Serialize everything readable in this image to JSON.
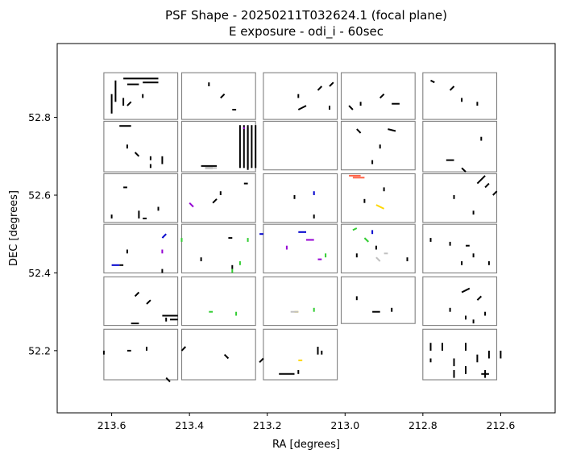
{
  "chart_data": {
    "type": "scatter",
    "title_line1": "PSF Shape - 20250211T032624.1 (focal plane)",
    "title_line2": "E exposure - odi_i - 60sec",
    "xlabel": "RA [degrees]",
    "ylabel": "DEC [degrees]",
    "xlim": [
      213.74,
      212.46
    ],
    "ylim": [
      52.04,
      52.99
    ],
    "x_inverted": true,
    "grid": false,
    "legend": "none",
    "xticks": [
      {
        "value": 213.6,
        "label": "213.6"
      },
      {
        "value": 213.4,
        "label": "213.4"
      },
      {
        "value": 213.2,
        "label": "213.2"
      },
      {
        "value": 213.0,
        "label": "213.0"
      },
      {
        "value": 212.8,
        "label": "212.8"
      },
      {
        "value": 212.6,
        "label": "212.6"
      }
    ],
    "yticks": [
      {
        "value": 52.2,
        "label": "52.2"
      },
      {
        "value": 52.4,
        "label": "52.4"
      },
      {
        "value": 52.6,
        "label": "52.6"
      },
      {
        "value": 52.8,
        "label": "52.8"
      }
    ],
    "ota_outline_color": "#808080",
    "ota_columns_ra": [
      [
        213.62,
        213.43
      ],
      [
        213.42,
        213.23
      ],
      [
        213.21,
        213.02
      ],
      [
        213.01,
        212.82
      ],
      [
        212.8,
        212.61
      ]
    ],
    "ota_rows_dec": [
      [
        52.795,
        52.915
      ],
      [
        52.66,
        52.79
      ],
      [
        52.53,
        52.655
      ],
      [
        52.4,
        52.525
      ],
      [
        52.265,
        52.39
      ],
      [
        52.125,
        52.255
      ]
    ],
    "ota_rows_dec_by_column": [
      [
        [
          52.795,
          52.915
        ],
        [
          52.66,
          52.79
        ],
        [
          52.53,
          52.655
        ],
        [
          52.4,
          52.525
        ],
        [
          52.265,
          52.39
        ],
        [
          52.125,
          52.255
        ]
      ],
      [
        [
          52.795,
          52.915
        ],
        [
          52.66,
          52.79
        ],
        [
          52.53,
          52.655
        ],
        [
          52.4,
          52.525
        ],
        [
          52.265,
          52.39
        ],
        [
          52.125,
          52.255
        ]
      ],
      [
        [
          52.795,
          52.915
        ],
        [
          52.665,
          52.79
        ],
        [
          52.53,
          52.655
        ],
        [
          52.4,
          52.525
        ],
        [
          52.265,
          52.39
        ],
        [
          52.125,
          52.255
        ]
      ],
      [
        [
          52.795,
          52.915
        ],
        [
          52.665,
          52.79
        ],
        [
          52.53,
          52.655
        ],
        [
          52.4,
          52.525
        ],
        [
          52.27,
          52.39
        ],
        null
      ],
      [
        [
          52.795,
          52.915
        ],
        [
          52.66,
          52.79
        ],
        [
          52.53,
          52.655
        ],
        [
          52.4,
          52.525
        ],
        [
          52.265,
          52.39
        ],
        [
          52.125,
          52.255
        ]
      ]
    ],
    "series": [
      {
        "color": "#000000",
        "segments": [
          [
            213.59,
            52.895,
            213.59,
            52.84
          ],
          [
            213.57,
            52.9,
            213.48,
            52.9
          ],
          [
            213.52,
            52.89,
            213.48,
            52.89
          ],
          [
            213.56,
            52.885,
            213.53,
            52.885
          ],
          [
            213.6,
            52.86,
            213.6,
            52.81
          ],
          [
            213.57,
            52.85,
            213.57,
            52.83
          ],
          [
            213.55,
            52.84,
            213.56,
            52.83
          ],
          [
            213.52,
            52.86,
            213.52,
            52.85
          ],
          [
            213.32,
            52.85,
            213.31,
            52.86
          ],
          [
            213.29,
            52.82,
            213.28,
            52.82
          ],
          [
            213.35,
            52.89,
            213.35,
            52.88
          ],
          [
            213.12,
            52.82,
            213.1,
            52.83
          ],
          [
            213.07,
            52.87,
            213.06,
            52.88
          ],
          [
            213.04,
            52.88,
            213.03,
            52.89
          ],
          [
            213.04,
            52.82,
            213.04,
            52.83
          ],
          [
            213.12,
            52.86,
            213.12,
            52.85
          ],
          [
            212.88,
            52.835,
            212.86,
            52.835
          ],
          [
            212.91,
            52.85,
            212.9,
            52.86
          ],
          [
            212.96,
            52.84,
            212.96,
            52.83
          ],
          [
            212.99,
            52.83,
            212.98,
            52.82
          ],
          [
            212.77,
            52.89,
            212.78,
            52.895
          ],
          [
            212.73,
            52.87,
            212.72,
            52.88
          ],
          [
            212.7,
            52.84,
            212.7,
            52.85
          ],
          [
            212.66,
            52.84,
            212.66,
            52.83
          ],
          [
            213.58,
            52.778,
            213.55,
            52.778
          ],
          [
            213.56,
            52.73,
            213.56,
            52.72
          ],
          [
            213.54,
            52.71,
            213.53,
            52.7
          ],
          [
            213.5,
            52.7,
            213.5,
            52.69
          ],
          [
            213.47,
            52.7,
            213.47,
            52.68
          ],
          [
            213.5,
            52.68,
            213.5,
            52.67
          ],
          [
            213.26,
            52.78,
            213.26,
            52.67
          ],
          [
            213.25,
            52.78,
            213.25,
            52.67
          ],
          [
            213.24,
            52.78,
            213.24,
            52.67
          ],
          [
            213.23,
            52.78,
            213.23,
            52.67
          ],
          [
            213.27,
            52.78,
            213.27,
            52.67
          ],
          [
            213.25,
            52.775,
            213.25,
            52.665
          ],
          [
            213.37,
            52.675,
            213.33,
            52.675
          ],
          [
            213.36,
            52.67,
            213.34,
            52.67
          ],
          [
            212.97,
            52.77,
            212.96,
            52.76
          ],
          [
            212.91,
            52.73,
            212.91,
            52.72
          ],
          [
            212.89,
            52.77,
            212.87,
            52.765
          ],
          [
            212.93,
            52.69,
            212.93,
            52.68
          ],
          [
            212.74,
            52.69,
            212.72,
            52.69
          ],
          [
            212.7,
            52.67,
            212.69,
            52.66
          ],
          [
            212.65,
            52.75,
            212.65,
            52.74
          ],
          [
            213.6,
            52.55,
            213.6,
            52.54
          ],
          [
            213.57,
            52.62,
            213.56,
            52.62
          ],
          [
            213.53,
            52.56,
            213.53,
            52.54
          ],
          [
            213.52,
            52.54,
            213.51,
            52.54
          ],
          [
            213.48,
            52.57,
            213.48,
            52.56
          ],
          [
            213.34,
            52.58,
            213.33,
            52.59
          ],
          [
            213.32,
            52.61,
            213.32,
            52.6
          ],
          [
            213.26,
            52.63,
            213.25,
            52.63
          ],
          [
            213.13,
            52.6,
            213.13,
            52.59
          ],
          [
            213.08,
            52.55,
            213.08,
            52.54
          ],
          [
            212.95,
            52.59,
            212.95,
            52.58
          ],
          [
            212.9,
            52.62,
            212.9,
            52.61
          ],
          [
            212.72,
            52.6,
            212.72,
            52.59
          ],
          [
            212.66,
            52.63,
            212.64,
            52.65
          ],
          [
            212.64,
            52.62,
            212.63,
            52.63
          ],
          [
            212.62,
            52.6,
            212.61,
            52.61
          ],
          [
            212.67,
            52.56,
            212.67,
            52.55
          ],
          [
            213.58,
            52.42,
            213.57,
            52.42
          ],
          [
            213.56,
            52.46,
            213.56,
            52.45
          ],
          [
            213.47,
            52.41,
            213.47,
            52.4
          ],
          [
            213.3,
            52.49,
            213.29,
            52.49
          ],
          [
            213.29,
            52.42,
            213.29,
            52.41
          ],
          [
            213.37,
            52.44,
            213.37,
            52.43
          ],
          [
            212.97,
            52.45,
            212.97,
            52.44
          ],
          [
            212.92,
            52.47,
            212.92,
            52.46
          ],
          [
            212.84,
            52.44,
            212.84,
            52.43
          ],
          [
            212.73,
            52.48,
            212.73,
            52.47
          ],
          [
            212.69,
            52.47,
            212.68,
            52.47
          ],
          [
            212.67,
            52.45,
            212.67,
            52.44
          ],
          [
            212.7,
            52.43,
            212.7,
            52.42
          ],
          [
            212.63,
            52.43,
            212.63,
            52.42
          ],
          [
            212.78,
            52.49,
            212.78,
            52.48
          ],
          [
            213.54,
            52.34,
            213.53,
            52.35
          ],
          [
            213.47,
            52.29,
            213.43,
            52.29
          ],
          [
            213.45,
            52.28,
            213.43,
            52.28
          ],
          [
            213.46,
            52.275,
            213.46,
            52.285
          ],
          [
            213.55,
            52.27,
            213.53,
            52.27
          ],
          [
            213.51,
            52.32,
            213.5,
            52.33
          ],
          [
            212.97,
            52.34,
            212.97,
            52.33
          ],
          [
            212.93,
            52.3,
            212.91,
            52.3
          ],
          [
            212.88,
            52.31,
            212.88,
            52.3
          ],
          [
            212.7,
            52.35,
            212.68,
            52.36
          ],
          [
            212.66,
            52.33,
            212.65,
            52.34
          ],
          [
            212.73,
            52.31,
            212.73,
            52.3
          ],
          [
            212.69,
            52.29,
            212.69,
            52.28
          ],
          [
            212.67,
            52.28,
            212.67,
            52.27
          ],
          [
            212.64,
            52.3,
            212.64,
            52.29
          ],
          [
            213.62,
            52.2,
            213.62,
            52.19
          ],
          [
            213.56,
            52.2,
            213.55,
            52.2
          ],
          [
            213.51,
            52.21,
            213.51,
            52.2
          ],
          [
            213.46,
            52.13,
            213.45,
            52.12
          ],
          [
            213.42,
            52.2,
            213.41,
            52.21
          ],
          [
            213.31,
            52.19,
            213.3,
            52.18
          ],
          [
            213.22,
            52.17,
            213.21,
            52.18
          ],
          [
            213.17,
            52.14,
            213.13,
            52.14
          ],
          [
            213.12,
            52.15,
            213.12,
            52.14
          ],
          [
            213.07,
            52.21,
            213.07,
            52.19
          ],
          [
            213.06,
            52.2,
            213.06,
            52.19
          ],
          [
            212.78,
            52.22,
            212.78,
            52.2
          ],
          [
            212.75,
            52.22,
            212.75,
            52.2
          ],
          [
            212.72,
            52.18,
            212.72,
            52.16
          ],
          [
            212.69,
            52.22,
            212.69,
            52.2
          ],
          [
            212.66,
            52.19,
            212.66,
            52.17
          ],
          [
            212.63,
            52.2,
            212.63,
            52.18
          ],
          [
            212.72,
            52.15,
            212.72,
            52.13
          ],
          [
            212.69,
            52.16,
            212.69,
            52.14
          ],
          [
            212.65,
            52.14,
            212.63,
            52.14
          ],
          [
            212.64,
            52.13,
            212.64,
            52.15
          ],
          [
            212.6,
            52.2,
            212.6,
            52.18
          ],
          [
            212.78,
            52.18,
            212.78,
            52.17
          ]
        ]
      },
      {
        "color": "#9400d3",
        "segments": [
          [
            213.4,
            52.58,
            213.39,
            52.57
          ],
          [
            213.26,
            52.775,
            213.26,
            52.77
          ],
          [
            213.1,
            52.485,
            213.08,
            52.485
          ],
          [
            213.15,
            52.47,
            213.15,
            52.46
          ],
          [
            213.07,
            52.435,
            213.06,
            52.435
          ],
          [
            213.47,
            52.45,
            213.47,
            52.46
          ]
        ]
      },
      {
        "color": "#0000cd",
        "segments": [
          [
            213.6,
            52.42,
            213.58,
            52.42
          ],
          [
            213.47,
            52.49,
            213.46,
            52.5
          ],
          [
            213.12,
            52.505,
            213.1,
            52.505
          ],
          [
            212.93,
            52.51,
            212.93,
            52.5
          ],
          [
            213.08,
            52.61,
            213.08,
            52.6
          ],
          [
            213.22,
            52.5,
            213.21,
            52.5
          ]
        ]
      },
      {
        "color": "#32cd32",
        "segments": [
          [
            213.29,
            52.41,
            213.29,
            52.4
          ],
          [
            213.27,
            52.43,
            213.27,
            52.42
          ],
          [
            213.25,
            52.49,
            213.25,
            52.48
          ],
          [
            213.42,
            52.49,
            213.42,
            52.48
          ],
          [
            212.98,
            52.51,
            212.97,
            52.515
          ],
          [
            212.95,
            52.49,
            212.94,
            52.48
          ],
          [
            213.05,
            52.45,
            213.05,
            52.44
          ],
          [
            213.08,
            52.31,
            213.08,
            52.3
          ],
          [
            213.35,
            52.3,
            213.34,
            52.3
          ],
          [
            213.28,
            52.3,
            213.28,
            52.29
          ]
        ]
      },
      {
        "color": "#ffd700",
        "segments": [
          [
            212.92,
            52.575,
            212.9,
            52.565
          ],
          [
            213.13,
            52.3,
            213.12,
            52.3
          ],
          [
            213.12,
            52.175,
            213.11,
            52.175
          ],
          [
            213.1,
            52.57,
            213.1,
            52.57
          ]
        ]
      },
      {
        "color": "#ff6347",
        "segments": [
          [
            212.99,
            52.65,
            212.96,
            52.65
          ],
          [
            212.98,
            52.645,
            212.95,
            52.645
          ]
        ]
      },
      {
        "color": "#c0c0c0",
        "segments": [
          [
            213.14,
            52.3,
            213.12,
            52.3
          ],
          [
            212.92,
            52.44,
            212.91,
            52.43
          ],
          [
            212.9,
            52.45,
            212.89,
            52.45
          ],
          [
            213.36,
            52.67,
            213.33,
            52.67
          ]
        ]
      }
    ]
  }
}
